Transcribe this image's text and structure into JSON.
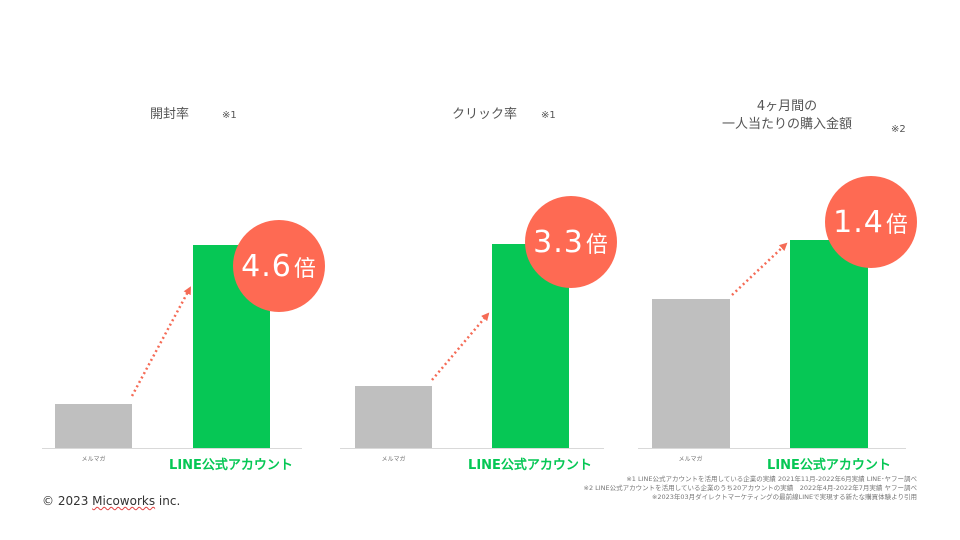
{
  "colors": {
    "other_bar": "#bfbfbf",
    "line_bar": "#06c755",
    "line_label": "#06c755",
    "badge": "#fe6a53",
    "arrow": "#f56b56"
  },
  "chart_data": [
    {
      "type": "bar",
      "title": "開封率",
      "note": "※1",
      "categories": [
        "メルマガ",
        "LINE公式アカウント"
      ],
      "values": [
        1,
        4.6
      ],
      "ylim": [
        0,
        5.9
      ],
      "multiplier": {
        "value": "4.6",
        "suffix": "倍"
      },
      "grid": false,
      "legend": "none"
    },
    {
      "type": "bar",
      "title": "クリック率",
      "note": "※1",
      "categories": [
        "メルマガ",
        "LINE公式アカウント"
      ],
      "values": [
        1,
        3.3
      ],
      "ylim": [
        0,
        4.2
      ],
      "multiplier": {
        "value": "3.3",
        "suffix": "倍"
      },
      "grid": false,
      "legend": "none"
    },
    {
      "type": "bar",
      "title_lines": [
        "4ヶ月間の",
        "一人当たりの購入金額"
      ],
      "note": "※2",
      "categories": [
        "メルマガ",
        "LINE公式アカウント"
      ],
      "values": [
        1,
        1.4
      ],
      "ylim": [
        0,
        1.75
      ],
      "multiplier": {
        "value": "1.4",
        "suffix": "倍"
      },
      "grid": false,
      "legend": "none"
    }
  ],
  "footnotes": [
    "※1 LINE公式アカウントを活用している企業の実績 2021年11月-2022年6月実績 LINE･ヤフー調べ",
    "※2 LINE公式アカウントを活用している企業のうち20アカウントの実績　2022年4月-2022年7月実績 ヤフー調べ",
    "※2023年03月ダイレクトマーケティングの最前線LINEで実現する新たな購買体験より引用"
  ],
  "copyright": {
    "prefix": "© 2023 ",
    "brand": "Micoworks",
    "suffix": " inc."
  }
}
